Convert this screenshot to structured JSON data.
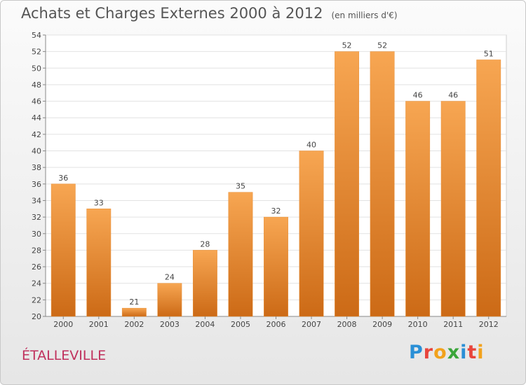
{
  "header": {
    "title": "Achats et Charges Externes 2000 à 2012",
    "subtitle": "(en milliers d'€)"
  },
  "footer": {
    "city": "ÉTALLEVILLE",
    "logo_letters": [
      {
        "ch": "P",
        "color": "#2a8fd6"
      },
      {
        "ch": "r",
        "color": "#e8453c"
      },
      {
        "ch": "o",
        "color": "#f2a21c"
      },
      {
        "ch": "x",
        "color": "#3aa53a"
      },
      {
        "ch": "i",
        "color": "#2a8fd6"
      },
      {
        "ch": "t",
        "color": "#e8453c"
      },
      {
        "ch": "i",
        "color": "#f2a21c"
      }
    ]
  },
  "chart_data": {
    "type": "bar",
    "title": "Achats et Charges Externes 2000 à 2012",
    "subtitle": "(en milliers d'€)",
    "categories": [
      "2000",
      "2001",
      "2002",
      "2003",
      "2004",
      "2005",
      "2006",
      "2007",
      "2008",
      "2009",
      "2010",
      "2011",
      "2012"
    ],
    "values": [
      36,
      33,
      21,
      24,
      28,
      35,
      32,
      40,
      52,
      52,
      46,
      46,
      51
    ],
    "ylim": [
      20,
      54
    ],
    "yticks": [
      20,
      22,
      24,
      26,
      28,
      30,
      32,
      34,
      36,
      38,
      40,
      42,
      44,
      46,
      48,
      50,
      52,
      54
    ],
    "grid": true,
    "bar_color_top": "#f7a652",
    "bar_color_bottom": "#cc6a16"
  }
}
